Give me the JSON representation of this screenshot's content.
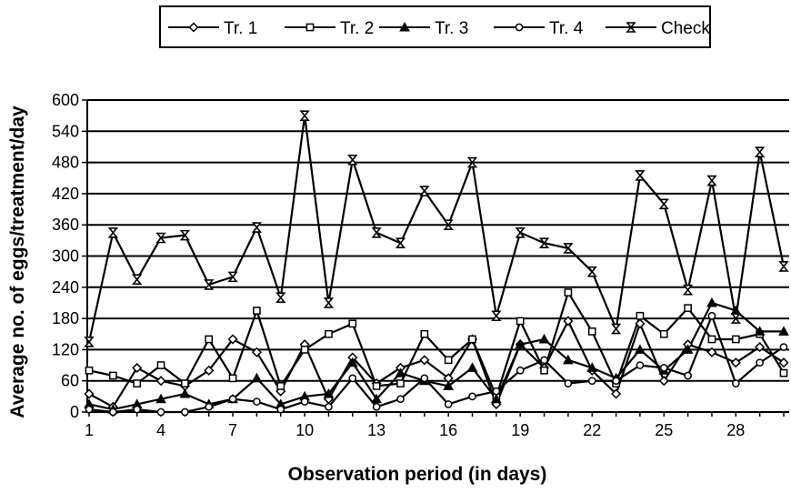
{
  "chart_data": {
    "type": "line",
    "title": "",
    "xlabel": "Observation period (in days)",
    "ylabel": "Average no. of eggs/treatment/day",
    "ylim": [
      0,
      600
    ],
    "xlim": [
      1,
      30
    ],
    "x": [
      1,
      2,
      3,
      4,
      5,
      6,
      7,
      8,
      9,
      10,
      11,
      12,
      13,
      14,
      15,
      16,
      17,
      18,
      19,
      20,
      21,
      22,
      23,
      24,
      25,
      26,
      27,
      28,
      29,
      30
    ],
    "x_ticks": [
      "1",
      "4",
      "7",
      "10",
      "13",
      "16",
      "19",
      "22",
      "25",
      "28"
    ],
    "y_ticks": [
      "0",
      "60",
      "120",
      "180",
      "240",
      "300",
      "360",
      "420",
      "480",
      "540",
      "600"
    ],
    "grid": "horizontal",
    "legend_position": "top",
    "series": [
      {
        "name": "Tr. 1",
        "marker": "diamond",
        "values": [
          35,
          10,
          85,
          60,
          50,
          80,
          140,
          115,
          40,
          130,
          25,
          105,
          55,
          85,
          100,
          65,
          140,
          15,
          130,
          85,
          175,
          80,
          35,
          170,
          60,
          130,
          115,
          95,
          125,
          95
        ]
      },
      {
        "name": "Tr. 2",
        "marker": "square",
        "values": [
          80,
          70,
          55,
          90,
          55,
          140,
          65,
          195,
          50,
          120,
          150,
          170,
          50,
          55,
          150,
          100,
          140,
          30,
          175,
          80,
          230,
          155,
          55,
          185,
          150,
          200,
          140,
          140,
          150,
          75
        ]
      },
      {
        "name": "Tr. 3",
        "marker": "triangle",
        "values": [
          15,
          5,
          15,
          25,
          35,
          15,
          25,
          65,
          15,
          30,
          35,
          95,
          25,
          75,
          60,
          50,
          85,
          25,
          130,
          140,
          100,
          85,
          65,
          120,
          80,
          120,
          210,
          195,
          155,
          155
        ]
      },
      {
        "name": "Tr. 4",
        "marker": "circle",
        "values": [
          5,
          0,
          5,
          0,
          0,
          10,
          25,
          20,
          5,
          20,
          10,
          65,
          10,
          25,
          65,
          15,
          30,
          40,
          80,
          100,
          55,
          60,
          60,
          90,
          85,
          70,
          185,
          55,
          95,
          125
        ]
      },
      {
        "name": "Check",
        "marker": "hourglass",
        "values": [
          135,
          345,
          255,
          335,
          340,
          245,
          260,
          355,
          220,
          570,
          210,
          485,
          345,
          325,
          425,
          360,
          480,
          185,
          345,
          325,
          315,
          270,
          160,
          455,
          400,
          235,
          445,
          180,
          500,
          280
        ]
      }
    ]
  }
}
